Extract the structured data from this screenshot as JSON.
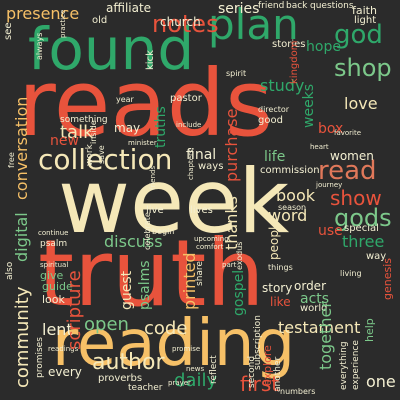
{
  "palette": {
    "background": "#2b2b2b",
    "red": "#e8533c",
    "green": "#2fa86a",
    "cream": "#f5e8b8",
    "yellow": "#f6c067",
    "light_green": "#7cc88a",
    "salmon": "#e0785a",
    "dark_green": "#1f8a52",
    "white": "#f3efd2"
  },
  "words": {
    "reads": "reads",
    "week": "week",
    "truth": "truth",
    "reading": "reading",
    "found": "found",
    "plan": "plan",
    "notes": "notes",
    "collection": "collection",
    "read": "read",
    "shop": "shop",
    "god": "god",
    "gods": "gods",
    "show": "show",
    "presence": "presence",
    "series": "series",
    "faith": "faith",
    "affiliate": "affiliate",
    "church": "church",
    "old": "old",
    "friend": "friend",
    "conversation": "conversation",
    "digital": "digital",
    "community": "community",
    "talk": "talk",
    "new": "new",
    "study": "study",
    "hope": "hope",
    "women": "women",
    "love": "love",
    "purchase": "purchase",
    "thanks": "thanks",
    "word": "word",
    "book": "book",
    "final": "final",
    "life": "life",
    "scripture": "scripture",
    "discuss": "discuss",
    "printed": "printed",
    "psalms": "psalms",
    "code": "code",
    "open": "open",
    "lent": "lent",
    "author": "author",
    "daily": "daily",
    "first": "first",
    "testament": "testament",
    "together": "together",
    "three": "three",
    "special": "special",
    "one": "one",
    "guest": "guest",
    "give": "give",
    "guide": "guide",
    "look": "look",
    "every": "every",
    "gospel": "gospel",
    "people": "people",
    "story": "story",
    "order": "order",
    "acts": "acts",
    "world": "world",
    "like": "like",
    "may": "may",
    "pastor": "pastor",
    "truths": "truths",
    "stories": "stories",
    "commission": "commission",
    "lives": "lives",
    "live": "live",
    "use": "use",
    "box": "box",
    "kingdom": "kingdom",
    "weeks": "weeks",
    "something": "something",
    "year": "year",
    "ways": "ways",
    "season": "season",
    "director": "director",
    "good": "good",
    "always": "always",
    "see": "see",
    "also": "also",
    "way": "way",
    "light": "light",
    "questions": "questions",
    "back": "back",
    "kick": "kick",
    "spirit": "spirit",
    "work": "work",
    "save": "save",
    "free": "free",
    "inside": "inside",
    "continue": "continue",
    "psalm": "psalm",
    "spiritual": "spiritual",
    "proverbs": "proverbs",
    "readings": "readings",
    "teacher": "teacher",
    "promise": "promise",
    "reflect": "reflect",
    "explore": "explore",
    "second": "second",
    "another": "another",
    "experience": "experience",
    "everything": "everything",
    "help": "help",
    "living": "living",
    "genesis": "genesis",
    "exodus": "exodus",
    "things": "things",
    "subscription": "subscription",
    "share": "share",
    "include": "include",
    "favorite": "favorite",
    "begin": "begin",
    "practice": "practice",
    "news": "news",
    "prayer": "prayer",
    "numbers": "numbers",
    "journey": "journey",
    "heart": "heart",
    "celebrate": "celebrate",
    "upcoming": "upcoming",
    "comfort": "comfort",
    "friends": "friends",
    "promises": "promises",
    "part": "part",
    "minister": "minister",
    "chapters": "chapters"
  }
}
